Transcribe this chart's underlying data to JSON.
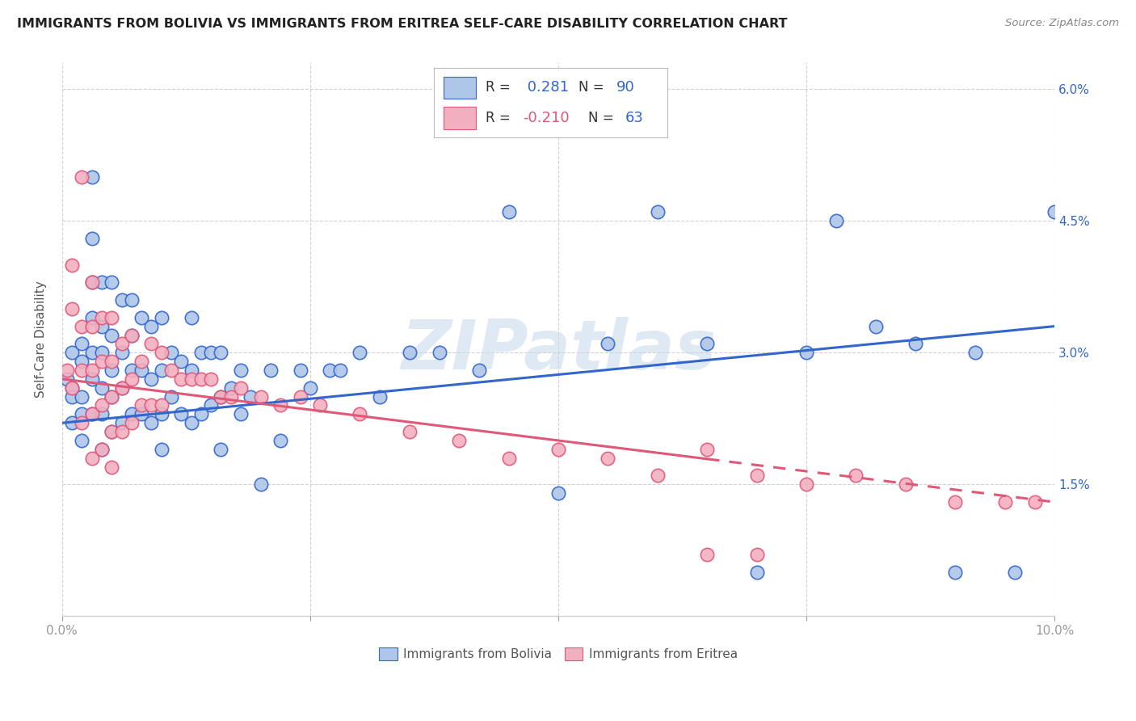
{
  "title": "IMMIGRANTS FROM BOLIVIA VS IMMIGRANTS FROM ERITREA SELF-CARE DISABILITY CORRELATION CHART",
  "source": "Source: ZipAtlas.com",
  "ylabel": "Self-Care Disability",
  "xlim": [
    0.0,
    0.1
  ],
  "ylim": [
    0.0,
    0.063
  ],
  "bolivia_color": "#aec6e8",
  "eritrea_color": "#f2afc0",
  "bolivia_line_color": "#3366cc",
  "eritrea_line_color": "#e05878",
  "watermark": "ZIPatlas",
  "legend_r_bolivia": " 0.281",
  "legend_n_bolivia": "90",
  "legend_r_eritrea": "-0.210",
  "legend_n_eritrea": "63",
  "bolivia_trend": [
    0.022,
    0.033
  ],
  "eritrea_trend": [
    0.027,
    0.013
  ],
  "bolivia_x": [
    0.0005,
    0.001,
    0.001,
    0.001,
    0.001,
    0.002,
    0.002,
    0.002,
    0.002,
    0.002,
    0.003,
    0.003,
    0.003,
    0.003,
    0.003,
    0.003,
    0.003,
    0.004,
    0.004,
    0.004,
    0.004,
    0.004,
    0.004,
    0.005,
    0.005,
    0.005,
    0.005,
    0.005,
    0.006,
    0.006,
    0.006,
    0.006,
    0.007,
    0.007,
    0.007,
    0.007,
    0.008,
    0.008,
    0.008,
    0.009,
    0.009,
    0.009,
    0.01,
    0.01,
    0.01,
    0.01,
    0.011,
    0.011,
    0.012,
    0.012,
    0.013,
    0.013,
    0.013,
    0.014,
    0.014,
    0.015,
    0.015,
    0.016,
    0.016,
    0.016,
    0.017,
    0.018,
    0.018,
    0.019,
    0.02,
    0.021,
    0.022,
    0.024,
    0.025,
    0.027,
    0.028,
    0.03,
    0.032,
    0.035,
    0.038,
    0.042,
    0.045,
    0.05,
    0.055,
    0.06,
    0.065,
    0.07,
    0.075,
    0.078,
    0.082,
    0.086,
    0.09,
    0.092,
    0.096,
    0.1
  ],
  "bolivia_y": [
    0.027,
    0.03,
    0.026,
    0.025,
    0.022,
    0.031,
    0.029,
    0.025,
    0.023,
    0.02,
    0.05,
    0.043,
    0.038,
    0.034,
    0.03,
    0.027,
    0.023,
    0.038,
    0.033,
    0.03,
    0.026,
    0.023,
    0.019,
    0.038,
    0.032,
    0.028,
    0.025,
    0.021,
    0.036,
    0.03,
    0.026,
    0.022,
    0.036,
    0.032,
    0.028,
    0.023,
    0.034,
    0.028,
    0.023,
    0.033,
    0.027,
    0.022,
    0.034,
    0.028,
    0.023,
    0.019,
    0.03,
    0.025,
    0.029,
    0.023,
    0.034,
    0.028,
    0.022,
    0.03,
    0.023,
    0.03,
    0.024,
    0.03,
    0.025,
    0.019,
    0.026,
    0.028,
    0.023,
    0.025,
    0.015,
    0.028,
    0.02,
    0.028,
    0.026,
    0.028,
    0.028,
    0.03,
    0.025,
    0.03,
    0.03,
    0.028,
    0.046,
    0.014,
    0.031,
    0.046,
    0.031,
    0.005,
    0.03,
    0.045,
    0.033,
    0.031,
    0.005,
    0.03,
    0.005,
    0.046
  ],
  "eritrea_x": [
    0.0005,
    0.001,
    0.001,
    0.001,
    0.002,
    0.002,
    0.002,
    0.002,
    0.003,
    0.003,
    0.003,
    0.003,
    0.003,
    0.004,
    0.004,
    0.004,
    0.004,
    0.005,
    0.005,
    0.005,
    0.005,
    0.005,
    0.006,
    0.006,
    0.006,
    0.007,
    0.007,
    0.007,
    0.008,
    0.008,
    0.009,
    0.009,
    0.01,
    0.01,
    0.011,
    0.012,
    0.013,
    0.014,
    0.015,
    0.016,
    0.017,
    0.018,
    0.02,
    0.022,
    0.024,
    0.026,
    0.03,
    0.035,
    0.04,
    0.045,
    0.05,
    0.055,
    0.06,
    0.065,
    0.07,
    0.075,
    0.08,
    0.085,
    0.09,
    0.095,
    0.098,
    0.065,
    0.07
  ],
  "eritrea_y": [
    0.028,
    0.04,
    0.035,
    0.026,
    0.05,
    0.033,
    0.028,
    0.022,
    0.038,
    0.033,
    0.028,
    0.023,
    0.018,
    0.034,
    0.029,
    0.024,
    0.019,
    0.034,
    0.029,
    0.025,
    0.021,
    0.017,
    0.031,
    0.026,
    0.021,
    0.032,
    0.027,
    0.022,
    0.029,
    0.024,
    0.031,
    0.024,
    0.03,
    0.024,
    0.028,
    0.027,
    0.027,
    0.027,
    0.027,
    0.025,
    0.025,
    0.026,
    0.025,
    0.024,
    0.025,
    0.024,
    0.023,
    0.021,
    0.02,
    0.018,
    0.019,
    0.018,
    0.016,
    0.019,
    0.016,
    0.015,
    0.016,
    0.015,
    0.013,
    0.013,
    0.013,
    0.007,
    0.007
  ]
}
